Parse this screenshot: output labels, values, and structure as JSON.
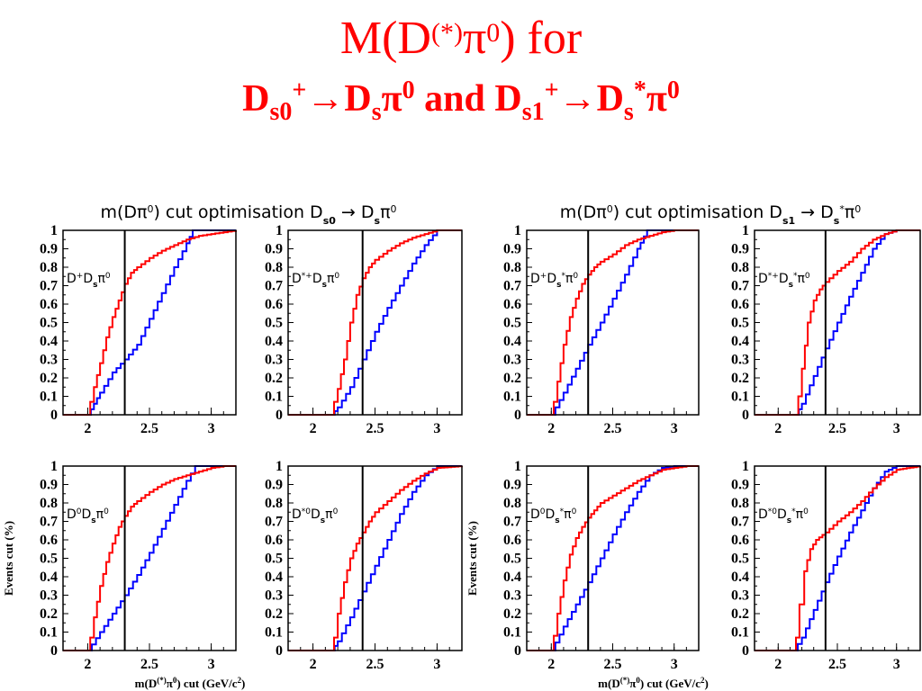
{
  "slide": {
    "title_main": "M(D",
    "title_sup": "(*)",
    "title_pi": "π",
    "title_sup0": "0",
    "title_end": ") for",
    "subtitle": {
      "p1_D": "D",
      "p1_sub": "s0",
      "p1_sup": "+",
      "arrow1": "→",
      "p2_D": "D",
      "p2_sub": "s",
      "p2_pi": "π",
      "p2_sup": "0",
      "and": " and ",
      "p3_D": "D",
      "p3_sub": "s1",
      "p3_sup": "+",
      "arrow2": "→",
      "p4_D": "D",
      "p4_sub": "s",
      "p4_sup": "*",
      "p4_pi": "π",
      "p4_sup0": "0"
    }
  },
  "colors": {
    "title": "#ff0000",
    "red_curve": "#ff0000",
    "blue_curve": "#0000ff",
    "cut_line": "#000000",
    "frame": "#000000"
  },
  "chart_data": {
    "type": "line",
    "group_titles": [
      "m(Dπ⁰) cut optimisation D_s0 → D_s π⁰",
      "m(Dπ⁰) cut optimisation D_s1 → D_s* π⁰"
    ],
    "ylabel": "Events cut (%)",
    "xlabel": "m(D(*)π0) cut (GeV/c2)",
    "xlim": [
      1.8,
      3.2
    ],
    "ylim": [
      0,
      1
    ],
    "y_ticks": [
      "0",
      "0.1",
      "0.2",
      "0.3",
      "0.4",
      "0.5",
      "0.6",
      "0.7",
      "0.8",
      "0.9",
      "1"
    ],
    "x_ticks": [
      "2",
      "2.5",
      "3"
    ],
    "panels": [
      {
        "label": "D+Dsπ0",
        "cut": 2.3,
        "ylabel_shown": false,
        "xlabel_shown": false,
        "red": {
          "x": [
            1.8,
            2.0,
            2.02,
            2.05,
            2.1,
            2.15,
            2.2,
            2.25,
            2.3,
            2.35,
            2.4,
            2.5,
            2.6,
            2.7,
            2.8,
            2.9,
            3.0,
            3.1,
            3.2
          ],
          "y": [
            0,
            0,
            0.07,
            0.15,
            0.28,
            0.42,
            0.53,
            0.62,
            0.71,
            0.77,
            0.8,
            0.85,
            0.89,
            0.92,
            0.95,
            0.97,
            0.98,
            0.99,
            1.0
          ]
        },
        "blue": {
          "x": [
            1.8,
            2.0,
            2.05,
            2.1,
            2.2,
            2.3,
            2.4,
            2.5,
            2.6,
            2.7,
            2.8,
            2.85,
            3.2
          ],
          "y": [
            0,
            0,
            0.06,
            0.12,
            0.23,
            0.3,
            0.38,
            0.52,
            0.66,
            0.8,
            0.93,
            1.0,
            1.0
          ]
        }
      },
      {
        "label": "D*+Dsπ0",
        "cut": 2.4,
        "ylabel_shown": false,
        "xlabel_shown": false,
        "red": {
          "x": [
            1.8,
            2.15,
            2.17,
            2.2,
            2.25,
            2.3,
            2.35,
            2.4,
            2.45,
            2.5,
            2.6,
            2.7,
            2.8,
            2.9,
            3.0,
            3.2
          ],
          "y": [
            0,
            0,
            0.07,
            0.14,
            0.3,
            0.5,
            0.65,
            0.74,
            0.8,
            0.84,
            0.89,
            0.93,
            0.96,
            0.98,
            1.0,
            1.0
          ]
        },
        "blue": {
          "x": [
            1.8,
            2.15,
            2.2,
            2.3,
            2.4,
            2.5,
            2.6,
            2.7,
            2.8,
            2.9,
            3.0,
            3.2
          ],
          "y": [
            0,
            0,
            0.04,
            0.15,
            0.3,
            0.45,
            0.58,
            0.7,
            0.82,
            0.92,
            1.0,
            1.0
          ]
        }
      },
      {
        "label": "D+Ds*π0",
        "cut": 2.3,
        "ylabel_shown": false,
        "xlabel_shown": false,
        "red": {
          "x": [
            1.8,
            2.0,
            2.02,
            2.05,
            2.1,
            2.15,
            2.2,
            2.25,
            2.3,
            2.35,
            2.4,
            2.5,
            2.6,
            2.7,
            2.8,
            2.9,
            3.0,
            3.2
          ],
          "y": [
            0,
            0,
            0.07,
            0.18,
            0.38,
            0.53,
            0.63,
            0.71,
            0.76,
            0.8,
            0.83,
            0.87,
            0.92,
            0.95,
            0.97,
            0.99,
            1.0,
            1.0
          ]
        },
        "blue": {
          "x": [
            1.8,
            2.0,
            2.1,
            2.2,
            2.3,
            2.4,
            2.5,
            2.6,
            2.7,
            2.78,
            3.2
          ],
          "y": [
            0,
            0,
            0.12,
            0.25,
            0.38,
            0.5,
            0.63,
            0.76,
            0.9,
            1.0,
            1.0
          ]
        }
      },
      {
        "label": "D*+Ds*π0",
        "cut": 2.4,
        "ylabel_shown": false,
        "xlabel_shown": false,
        "red": {
          "x": [
            1.8,
            2.15,
            2.17,
            2.2,
            2.25,
            2.3,
            2.35,
            2.4,
            2.5,
            2.6,
            2.7,
            2.8,
            2.9,
            3.0,
            3.2
          ],
          "y": [
            0,
            0,
            0.1,
            0.25,
            0.5,
            0.62,
            0.68,
            0.72,
            0.78,
            0.83,
            0.9,
            0.95,
            0.98,
            1.0,
            1.0
          ]
        },
        "blue": {
          "x": [
            1.8,
            2.15,
            2.2,
            2.3,
            2.4,
            2.5,
            2.6,
            2.7,
            2.8,
            2.9,
            3.0,
            3.2
          ],
          "y": [
            0,
            0,
            0.06,
            0.21,
            0.36,
            0.5,
            0.64,
            0.77,
            0.9,
            0.98,
            1.0,
            1.0
          ]
        }
      },
      {
        "label": "D0Dsπ0",
        "cut": 2.3,
        "ylabel_shown": true,
        "xlabel_shown": true,
        "red": {
          "x": [
            1.8,
            2.0,
            2.02,
            2.05,
            2.1,
            2.15,
            2.2,
            2.25,
            2.3,
            2.35,
            2.4,
            2.5,
            2.6,
            2.7,
            2.8,
            2.9,
            3.0,
            3.1,
            3.2
          ],
          "y": [
            0,
            0,
            0.07,
            0.18,
            0.35,
            0.48,
            0.58,
            0.67,
            0.73,
            0.78,
            0.81,
            0.86,
            0.9,
            0.93,
            0.95,
            0.97,
            0.99,
            1.0,
            1.0
          ]
        },
        "blue": {
          "x": [
            1.8,
            2.0,
            2.1,
            2.2,
            2.3,
            2.4,
            2.5,
            2.6,
            2.7,
            2.8,
            2.87,
            3.2
          ],
          "y": [
            0,
            0,
            0.1,
            0.2,
            0.3,
            0.41,
            0.53,
            0.66,
            0.79,
            0.92,
            1.0,
            1.0
          ]
        }
      },
      {
        "label": "D*0Dsπ0",
        "cut": 2.4,
        "ylabel_shown": false,
        "xlabel_shown": false,
        "red": {
          "x": [
            1.8,
            2.15,
            2.17,
            2.2,
            2.25,
            2.3,
            2.35,
            2.4,
            2.45,
            2.5,
            2.6,
            2.7,
            2.8,
            2.9,
            3.0,
            3.2
          ],
          "y": [
            0,
            0,
            0.07,
            0.2,
            0.37,
            0.5,
            0.58,
            0.64,
            0.7,
            0.75,
            0.81,
            0.87,
            0.92,
            0.96,
            0.99,
            1.0
          ]
        },
        "blue": {
          "x": [
            1.8,
            2.15,
            2.2,
            2.3,
            2.4,
            2.5,
            2.6,
            2.7,
            2.8,
            2.9,
            3.0,
            3.2
          ],
          "y": [
            0,
            0,
            0.05,
            0.18,
            0.32,
            0.46,
            0.6,
            0.74,
            0.86,
            0.95,
            1.0,
            1.0
          ]
        }
      },
      {
        "label": "D0Ds*π0",
        "cut": 2.3,
        "ylabel_shown": true,
        "xlabel_shown": true,
        "red": {
          "x": [
            1.8,
            2.0,
            2.02,
            2.05,
            2.1,
            2.15,
            2.2,
            2.25,
            2.3,
            2.35,
            2.4,
            2.5,
            2.6,
            2.7,
            2.8,
            2.9,
            3.0,
            3.1,
            3.2
          ],
          "y": [
            0,
            0,
            0.08,
            0.2,
            0.38,
            0.52,
            0.61,
            0.67,
            0.72,
            0.76,
            0.8,
            0.84,
            0.88,
            0.92,
            0.95,
            0.98,
            0.99,
            1.0,
            1.0
          ]
        },
        "blue": {
          "x": [
            1.8,
            2.0,
            2.1,
            2.2,
            2.3,
            2.4,
            2.5,
            2.6,
            2.7,
            2.8,
            2.9,
            3.0,
            3.2
          ],
          "y": [
            0,
            0,
            0.13,
            0.25,
            0.37,
            0.5,
            0.63,
            0.75,
            0.86,
            0.95,
            0.99,
            1.0,
            1.0
          ]
        }
      },
      {
        "label": "D*0Ds*π0",
        "cut": 2.4,
        "ylabel_shown": false,
        "xlabel_shown": false,
        "red": {
          "x": [
            1.8,
            2.13,
            2.15,
            2.18,
            2.22,
            2.27,
            2.32,
            2.4,
            2.5,
            2.6,
            2.7,
            2.8,
            2.9,
            3.0,
            3.2
          ],
          "y": [
            0,
            0,
            0.07,
            0.25,
            0.43,
            0.55,
            0.6,
            0.64,
            0.7,
            0.75,
            0.81,
            0.88,
            0.94,
            0.98,
            1.0
          ]
        },
        "blue": {
          "x": [
            1.8,
            2.13,
            2.2,
            2.3,
            2.4,
            2.5,
            2.6,
            2.7,
            2.8,
            2.9,
            3.0,
            3.2
          ],
          "y": [
            0,
            0,
            0.07,
            0.22,
            0.37,
            0.51,
            0.64,
            0.76,
            0.88,
            0.97,
            1.0,
            1.0
          ]
        }
      }
    ]
  }
}
